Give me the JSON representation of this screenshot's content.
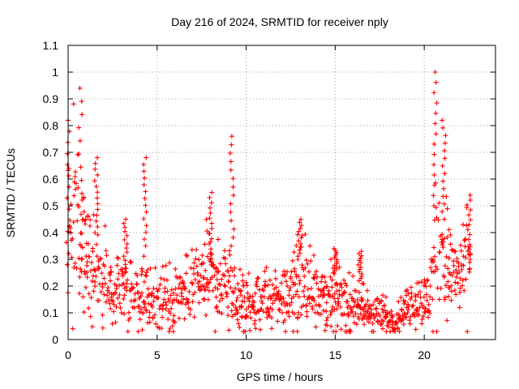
{
  "chart_data": {
    "type": "scatter",
    "title": "Day 216 of 2024, SRMTID for receiver nply",
    "xlabel": "GPS time / hours",
    "ylabel": "SRMTID / TECUs",
    "xlim": [
      0,
      24
    ],
    "ylim": [
      0,
      1.1
    ],
    "xticks": [
      0,
      5,
      10,
      15,
      20
    ],
    "xtick_labels": [
      "0",
      "5",
      "10",
      "15",
      "20"
    ],
    "yticks": [
      0,
      0.1,
      0.2,
      0.3,
      0.4,
      0.5,
      0.6,
      0.7,
      0.8,
      0.9,
      1,
      1.1
    ],
    "ytick_labels": [
      "0",
      "0.1",
      "0.2",
      "0.3",
      "0.4",
      "0.5",
      "0.6",
      "0.7",
      "0.8",
      "0.9",
      "1",
      "1.1"
    ],
    "grid": true,
    "marker": "+",
    "series": [
      {
        "name": "SRMTID",
        "color": "#ff0000",
        "envelope_hours": [
          0,
          0.3,
          0.7,
          1.2,
          1.8,
          2.5,
          3.2,
          4,
          5,
          6,
          7,
          7.8,
          8.5,
          9,
          9.6,
          10.2,
          11,
          12,
          13,
          13.8,
          14.5,
          15,
          15.8,
          16.5,
          17.2,
          18,
          18.5,
          19,
          19.8,
          20.3,
          20.6,
          21,
          21.5,
          22,
          22.6
        ],
        "envelope_base": [
          0.5,
          0.45,
          0.38,
          0.3,
          0.25,
          0.2,
          0.2,
          0.18,
          0.14,
          0.15,
          0.2,
          0.24,
          0.2,
          0.2,
          0.14,
          0.13,
          0.14,
          0.16,
          0.2,
          0.22,
          0.16,
          0.15,
          0.13,
          0.11,
          0.1,
          0.08,
          0.08,
          0.13,
          0.14,
          0.15,
          0.3,
          0.35,
          0.25,
          0.22,
          0.3
        ],
        "envelope_spread": [
          0.18,
          0.16,
          0.12,
          0.09,
          0.08,
          0.07,
          0.07,
          0.07,
          0.06,
          0.06,
          0.07,
          0.08,
          0.07,
          0.07,
          0.06,
          0.05,
          0.06,
          0.06,
          0.08,
          0.09,
          0.06,
          0.06,
          0.05,
          0.05,
          0.04,
          0.03,
          0.03,
          0.04,
          0.05,
          0.06,
          0.12,
          0.14,
          0.09,
          0.08,
          0.1
        ],
        "spikes": [
          {
            "x": 0,
            "y_min": 0.28,
            "y_max": 0.82
          },
          {
            "x": 0.7,
            "y_min": 0.3,
            "y_max": 0.94
          },
          {
            "x": 1.6,
            "y_min": 0.4,
            "y_max": 0.68
          },
          {
            "x": 3.2,
            "y_min": 0.25,
            "y_max": 0.45
          },
          {
            "x": 4.3,
            "y_min": 0.35,
            "y_max": 0.68
          },
          {
            "x": 8,
            "y_min": 0.3,
            "y_max": 0.55
          },
          {
            "x": 9.2,
            "y_min": 0.35,
            "y_max": 0.76
          },
          {
            "x": 13,
            "y_min": 0.3,
            "y_max": 0.45
          },
          {
            "x": 15,
            "y_min": 0.25,
            "y_max": 0.34
          },
          {
            "x": 16.4,
            "y_min": 0.22,
            "y_max": 0.33
          },
          {
            "x": 20.6,
            "y_min": 0.5,
            "y_max": 1.0
          },
          {
            "x": 21.1,
            "y_min": 0.45,
            "y_max": 0.82
          },
          {
            "x": 22.5,
            "y_min": 0.3,
            "y_max": 0.54
          }
        ]
      }
    ]
  }
}
